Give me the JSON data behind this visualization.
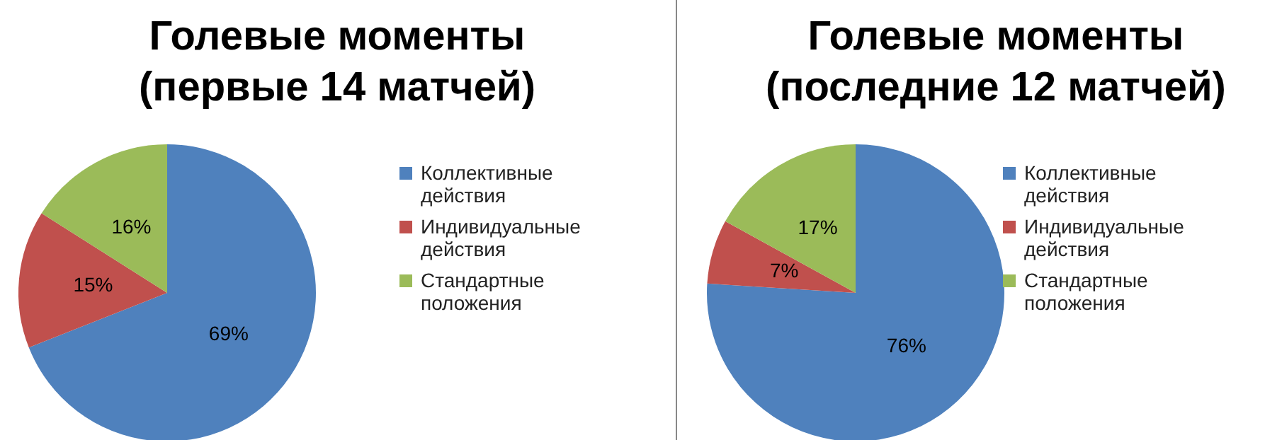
{
  "chart_data": [
    {
      "type": "pie",
      "title": "Голевые моменты (первые 14 матчей)",
      "categories": [
        "Коллективные действия",
        "Индивидуальные действия",
        "Стандартные положения"
      ],
      "values": [
        69,
        15,
        16
      ],
      "value_labels": [
        "69%",
        "15%",
        "16%"
      ],
      "colors": [
        "#4f81bd",
        "#c0504d",
        "#9bbb59"
      ],
      "legend": "right"
    },
    {
      "type": "pie",
      "title": "Голевые моменты (последние 12 матчей)",
      "categories": [
        "Коллективные действия",
        "Индивидуальные действия",
        "Стандартные положения"
      ],
      "values": [
        76,
        7,
        17
      ],
      "value_labels": [
        "76%",
        "7%",
        "17%"
      ],
      "colors": [
        "#4f81bd",
        "#c0504d",
        "#9bbb59"
      ],
      "legend": "right"
    }
  ]
}
